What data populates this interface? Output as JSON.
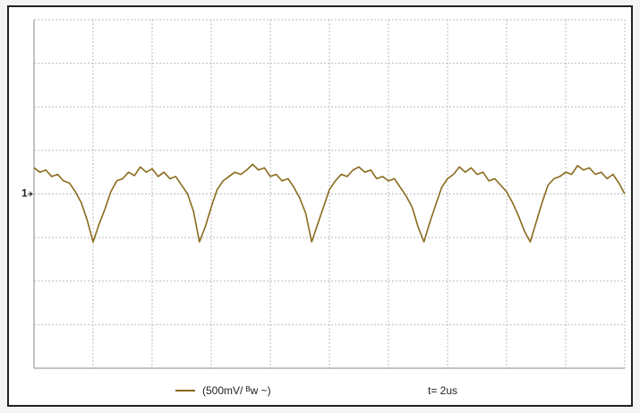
{
  "chart_data": {
    "type": "line",
    "x": [
      0,
      0.1,
      0.2,
      0.3,
      0.4,
      0.5,
      0.6,
      0.7,
      0.8,
      0.9,
      1,
      1.1,
      1.2,
      1.3,
      1.4,
      1.5,
      1.6,
      1.7,
      1.8,
      1.9,
      2,
      2.1,
      2.2,
      2.3,
      2.4,
      2.5,
      2.6,
      2.7,
      2.8,
      2.9,
      3,
      3.1,
      3.2,
      3.3,
      3.4,
      3.5,
      3.6,
      3.7,
      3.8,
      3.9,
      4,
      4.1,
      4.2,
      4.3,
      4.4,
      4.5,
      4.6,
      4.7,
      4.8,
      4.9,
      5,
      5.1,
      5.2,
      5.3,
      5.4,
      5.5,
      5.6,
      5.7,
      5.8,
      5.9,
      6,
      6.1,
      6.2,
      6.3,
      6.4,
      6.5,
      6.6,
      6.7,
      6.8,
      6.9,
      7,
      7.1,
      7.2,
      7.3,
      7.4,
      7.5,
      7.6,
      7.7,
      7.8,
      7.9,
      8,
      8.1,
      8.2,
      8.3,
      8.4,
      8.5,
      8.6,
      8.7,
      8.8,
      8.9,
      9,
      9.1,
      9.2,
      9.3,
      9.4,
      9.5,
      9.6,
      9.7,
      9.8,
      9.9,
      10
    ],
    "series": [
      {
        "name": "(500mV/ ᴮw ~)",
        "color": "#8a6a1c",
        "values": [
          0.6,
          0.5,
          0.55,
          0.4,
          0.45,
          0.3,
          0.25,
          0.05,
          -0.2,
          -0.6,
          -1.1,
          -0.7,
          -0.35,
          0.05,
          0.3,
          0.35,
          0.5,
          0.42,
          0.62,
          0.5,
          0.58,
          0.4,
          0.5,
          0.35,
          0.4,
          0.2,
          0,
          -0.4,
          -1.1,
          -0.75,
          -0.3,
          0.1,
          0.3,
          0.4,
          0.5,
          0.45,
          0.55,
          0.68,
          0.55,
          0.6,
          0.4,
          0.45,
          0.3,
          0.35,
          0.15,
          -0.1,
          -0.45,
          -1.1,
          -0.7,
          -0.3,
          0.1,
          0.3,
          0.45,
          0.4,
          0.55,
          0.62,
          0.5,
          0.55,
          0.35,
          0.4,
          0.3,
          0.35,
          0.15,
          -0.05,
          -0.3,
          -0.75,
          -1.1,
          -0.65,
          -0.25,
          0.15,
          0.35,
          0.45,
          0.62,
          0.5,
          0.6,
          0.45,
          0.5,
          0.3,
          0.35,
          0.2,
          0.05,
          -0.2,
          -0.5,
          -0.85,
          -1.1,
          -0.65,
          -0.2,
          0.2,
          0.35,
          0.4,
          0.5,
          0.45,
          0.65,
          0.55,
          0.6,
          0.45,
          0.5,
          0.35,
          0.45,
          0.25,
          0
        ]
      }
    ],
    "timebase": "t= 2us",
    "channel_marker": {
      "label": "1",
      "value": 0
    },
    "xlim": [
      0,
      10
    ],
    "ylim": [
      -4,
      4
    ],
    "xticks": [
      0,
      1,
      2,
      3,
      4,
      5,
      6,
      7,
      8,
      9,
      10
    ],
    "yticks": [
      -4,
      -3,
      -2,
      -1,
      0,
      1,
      2,
      3,
      4
    ],
    "grid": true
  }
}
